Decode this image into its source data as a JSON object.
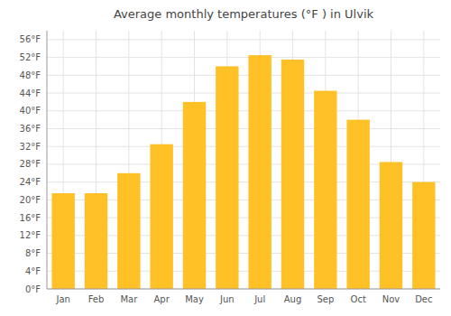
{
  "chart_data": {
    "type": "bar",
    "title": "Average monthly temperatures (°F ) in Ulvik",
    "categories": [
      "Jan",
      "Feb",
      "Mar",
      "Apr",
      "May",
      "Jun",
      "Jul",
      "Aug",
      "Sep",
      "Oct",
      "Nov",
      "Dec"
    ],
    "values": [
      21.5,
      21.5,
      26.0,
      32.5,
      42.0,
      50.0,
      52.5,
      51.5,
      44.5,
      38.0,
      28.5,
      24.0
    ],
    "color": "#FFC125",
    "ylim": [
      0,
      58
    ],
    "yticks": [
      {
        "value": 0,
        "label": "0°F"
      },
      {
        "value": 4,
        "label": "4°F"
      },
      {
        "value": 8,
        "label": "8°F"
      },
      {
        "value": 12,
        "label": "12°F"
      },
      {
        "value": 16,
        "label": "16°F"
      },
      {
        "value": 20,
        "label": "20°F"
      },
      {
        "value": 24,
        "label": "24°F"
      },
      {
        "value": 28,
        "label": "28°F"
      },
      {
        "value": 32,
        "label": "32°F"
      },
      {
        "value": 36,
        "label": "36°F"
      },
      {
        "value": 40,
        "label": "40°F"
      },
      {
        "value": 44,
        "label": "44°F"
      },
      {
        "value": 48,
        "label": "48°F"
      },
      {
        "value": 52,
        "label": "52°F"
      },
      {
        "value": 56,
        "label": "56°F"
      }
    ],
    "grid": true
  }
}
